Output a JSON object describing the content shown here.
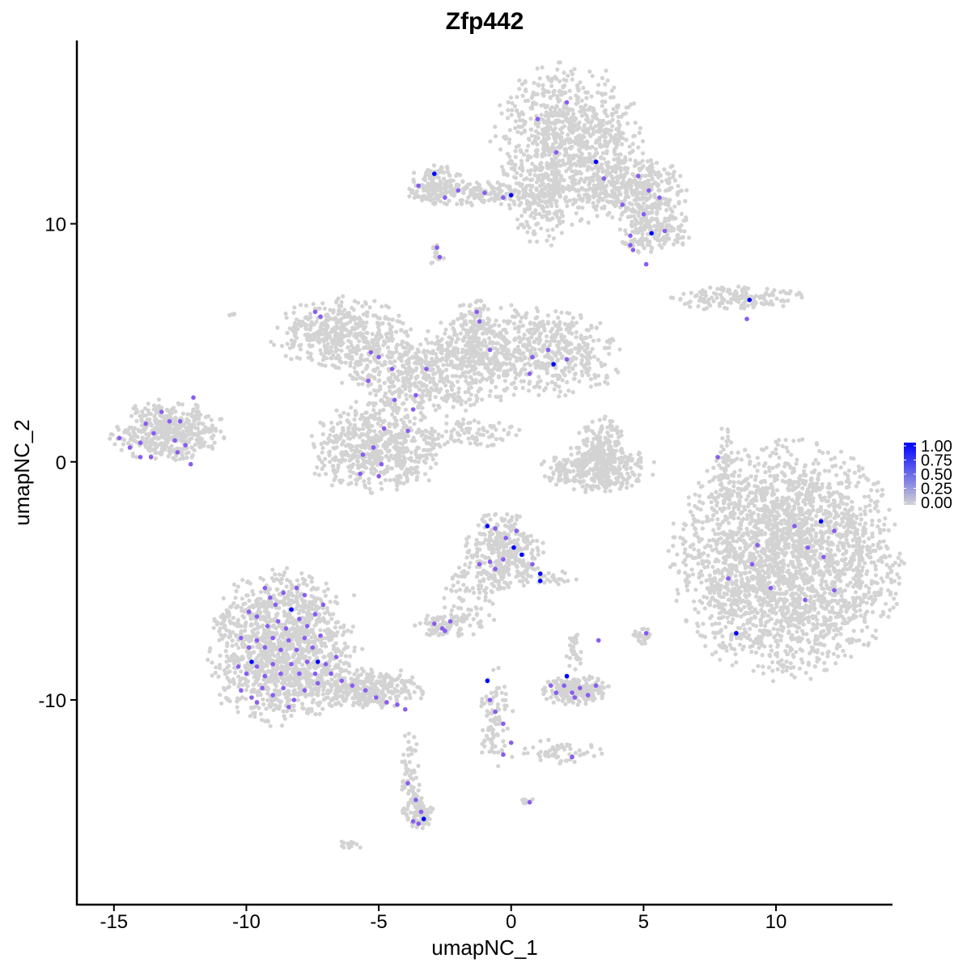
{
  "chart_data": {
    "type": "scatter",
    "title": "Zfp442",
    "xlabel": "umapNC_1",
    "ylabel": "umapNC_2",
    "xlim": [
      -16.4,
      14.4
    ],
    "ylim": [
      -18.6,
      17.7
    ],
    "xticks": [
      -15,
      -10,
      -5,
      0,
      5,
      10
    ],
    "yticks": [
      -10,
      0,
      10
    ],
    "grid": false,
    "legend": {
      "placement": "right",
      "type": "colorbar",
      "ticks": [
        "1.00",
        "0.75",
        "0.50",
        "0.25",
        "0.00"
      ],
      "low_color": "#d3d3d3",
      "high_color": "#0000ff"
    },
    "background_clusters": [
      {
        "cx": 2.1,
        "cy": 13.4,
        "sx": 1.3,
        "sy": 1.6,
        "n": 900
      },
      {
        "cx": 4.6,
        "cy": 11.5,
        "sx": 1.0,
        "sy": 0.6,
        "n": 350
      },
      {
        "cx": 5.4,
        "cy": 9.8,
        "sx": 0.7,
        "sy": 0.5,
        "n": 200
      },
      {
        "cx": -1.0,
        "cy": 11.3,
        "sx": 1.6,
        "sy": 0.25,
        "n": 200
      },
      {
        "cx": -2.8,
        "cy": 11.6,
        "sx": 0.5,
        "sy": 0.4,
        "n": 120
      },
      {
        "cx": 1.2,
        "cy": 11.0,
        "sx": 0.6,
        "sy": 0.9,
        "n": 150
      },
      {
        "cx": -2.8,
        "cy": 8.7,
        "sx": 0.15,
        "sy": 0.3,
        "n": 15
      },
      {
        "cx": 8.5,
        "cy": 6.9,
        "sx": 1.2,
        "sy": 0.25,
        "n": 150
      },
      {
        "cx": -6.3,
        "cy": 5.4,
        "sx": 1.3,
        "sy": 0.7,
        "n": 450
      },
      {
        "cx": -3.5,
        "cy": 3.6,
        "sx": 1.4,
        "sy": 0.8,
        "n": 450
      },
      {
        "cx": 0.4,
        "cy": 4.6,
        "sx": 1.8,
        "sy": 0.9,
        "n": 700
      },
      {
        "cx": -1.4,
        "cy": 5.5,
        "sx": 0.3,
        "sy": 0.8,
        "n": 120
      },
      {
        "cx": -5.1,
        "cy": 0.5,
        "sx": 1.2,
        "sy": 0.9,
        "n": 600
      },
      {
        "cx": -1.6,
        "cy": 1.2,
        "sx": 0.9,
        "sy": 0.3,
        "n": 80
      },
      {
        "cx": -13.0,
        "cy": 1.3,
        "sx": 1.0,
        "sy": 0.6,
        "n": 450
      },
      {
        "cx": 3.3,
        "cy": -0.3,
        "sx": 1.0,
        "sy": 0.45,
        "n": 350
      },
      {
        "cx": 3.4,
        "cy": 0.8,
        "sx": 0.4,
        "sy": 0.6,
        "n": 120
      },
      {
        "cx": 8.1,
        "cy": -0.3,
        "sx": 0.15,
        "sy": 0.9,
        "n": 60
      },
      {
        "cx": 10.4,
        "cy": -4.1,
        "sx": 2.0,
        "sy": 2.3,
        "n": 2600
      },
      {
        "cx": -0.3,
        "cy": -3.8,
        "sx": 0.7,
        "sy": 0.8,
        "n": 350
      },
      {
        "cx": -1.6,
        "cy": -5.8,
        "sx": 0.5,
        "sy": 0.8,
        "n": 80
      },
      {
        "cx": -2.6,
        "cy": -6.9,
        "sx": 0.5,
        "sy": 0.25,
        "n": 80
      },
      {
        "cx": -8.7,
        "cy": -7.8,
        "sx": 1.3,
        "sy": 1.5,
        "n": 1300
      },
      {
        "cx": -5.5,
        "cy": -9.5,
        "sx": 1.1,
        "sy": 0.4,
        "n": 350
      },
      {
        "cx": -3.8,
        "cy": -12.9,
        "sx": 0.2,
        "sy": 0.9,
        "n": 60
      },
      {
        "cx": -3.5,
        "cy": -14.8,
        "sx": 0.3,
        "sy": 0.35,
        "n": 90
      },
      {
        "cx": 2.4,
        "cy": -9.6,
        "sx": 0.6,
        "sy": 0.3,
        "n": 200
      },
      {
        "cx": -0.6,
        "cy": -10.8,
        "sx": 0.3,
        "sy": 1.0,
        "n": 90
      },
      {
        "cx": 1.7,
        "cy": -12.2,
        "sx": 0.8,
        "sy": 0.25,
        "n": 60
      },
      {
        "cx": 5.0,
        "cy": -7.3,
        "sx": 0.2,
        "sy": 0.2,
        "n": 30
      },
      {
        "cx": 2.5,
        "cy": -8.0,
        "sx": 0.2,
        "sy": 0.5,
        "n": 30
      },
      {
        "cx": -6.1,
        "cy": -16.1,
        "sx": 0.2,
        "sy": 0.1,
        "n": 15
      },
      {
        "cx": 0.6,
        "cy": -14.2,
        "sx": 0.1,
        "sy": 0.1,
        "n": 8
      },
      {
        "cx": -10.5,
        "cy": 6.2,
        "sx": 0.1,
        "sy": 0.1,
        "n": 5
      },
      {
        "cx": 1.5,
        "cy": -4.9,
        "sx": 0.5,
        "sy": 0.15,
        "n": 25
      }
    ],
    "expressing_cells": [
      [
        -2.9,
        12.1,
        1
      ],
      [
        3.2,
        12.6,
        1
      ],
      [
        0,
        11.2,
        1
      ],
      [
        5.3,
        9.6,
        1
      ],
      [
        9,
        6.8,
        1
      ],
      [
        1.6,
        4.1,
        1
      ],
      [
        11.7,
        -2.5,
        1
      ],
      [
        8.5,
        -7.2,
        1
      ],
      [
        -0.9,
        -2.7,
        1
      ],
      [
        0.1,
        -3.6,
        1
      ],
      [
        0.4,
        -3.9,
        1
      ],
      [
        1.1,
        -4.7,
        1
      ],
      [
        1.1,
        -5.0,
        1
      ],
      [
        -8.3,
        -6.2,
        1
      ],
      [
        -9.8,
        -8.4,
        1
      ],
      [
        -7.3,
        -8.4,
        1
      ],
      [
        -0.9,
        -9.2,
        1
      ],
      [
        2.1,
        -9.0,
        1
      ],
      [
        -3.3,
        -15.0,
        1
      ],
      [
        2.1,
        15.1,
        0.5
      ],
      [
        1.0,
        14.4,
        0.5
      ],
      [
        1.7,
        13.0,
        0.5
      ],
      [
        -3.5,
        11.6,
        0.5
      ],
      [
        -2.5,
        11.1,
        0.5
      ],
      [
        -2.0,
        11.4,
        0.5
      ],
      [
        -1.0,
        11.3,
        0.5
      ],
      [
        -0.3,
        11.1,
        0.5
      ],
      [
        3.5,
        11.9,
        0.5
      ],
      [
        4.8,
        12.0,
        0.5
      ],
      [
        5.2,
        11.4,
        0.5
      ],
      [
        5.6,
        11.1,
        0.5
      ],
      [
        4.2,
        10.8,
        0.5
      ],
      [
        5.0,
        10.4,
        0.5
      ],
      [
        5.8,
        9.7,
        0.5
      ],
      [
        4.5,
        9.5,
        0.5
      ],
      [
        4.5,
        9.1,
        0.5
      ],
      [
        4.6,
        8.9,
        0.5
      ],
      [
        5.1,
        8.3,
        0.5
      ],
      [
        -2.8,
        9.0,
        0.5
      ],
      [
        -2.7,
        8.6,
        0.5
      ],
      [
        8.9,
        6.0,
        0.5
      ],
      [
        -7.4,
        6.3,
        0.5
      ],
      [
        -7.2,
        6.1,
        0.5
      ],
      [
        -5.3,
        4.6,
        0.5
      ],
      [
        -5.0,
        4.4,
        0.5
      ],
      [
        -5.4,
        3.4,
        0.5
      ],
      [
        -4.5,
        3.9,
        0.5
      ],
      [
        -1.3,
        6.3,
        0.5
      ],
      [
        -1.2,
        5.9,
        0.5
      ],
      [
        -0.8,
        4.7,
        0.5
      ],
      [
        0.8,
        4.4,
        0.5
      ],
      [
        1.4,
        4.7,
        0.5
      ],
      [
        2.1,
        4.3,
        0.5
      ],
      [
        0.7,
        3.7,
        0.5
      ],
      [
        -3.2,
        3.9,
        0.5
      ],
      [
        -3.6,
        2.8,
        0.5
      ],
      [
        -3.7,
        2.2,
        0.5
      ],
      [
        -4.4,
        2.6,
        0.5
      ],
      [
        -3.9,
        1.3,
        0.5
      ],
      [
        -5.2,
        0.6,
        0.5
      ],
      [
        -5.6,
        0.3,
        0.5
      ],
      [
        -4.9,
        -0.1,
        0.5
      ],
      [
        -5.7,
        -0.5,
        0.5
      ],
      [
        -5.0,
        -0.6,
        0.5
      ],
      [
        -4.8,
        1.4,
        0.5
      ],
      [
        -14.8,
        1.0,
        0.5
      ],
      [
        -14.4,
        0.6,
        0.5
      ],
      [
        -14.0,
        0.2,
        0.5
      ],
      [
        -13.6,
        0.2,
        0.5
      ],
      [
        -13.5,
        1.2,
        0.5
      ],
      [
        -13.2,
        2.1,
        0.5
      ],
      [
        -12.9,
        1.7,
        0.5
      ],
      [
        -12.7,
        0.9,
        0.5
      ],
      [
        -12.5,
        1.7,
        0.5
      ],
      [
        -12.3,
        0.7,
        0.5
      ],
      [
        -12.1,
        -0.1,
        0.5
      ],
      [
        -13.8,
        1.6,
        0.5
      ],
      [
        -12.0,
        2.7,
        0.5
      ],
      [
        -14.0,
        0.8,
        0.5
      ],
      [
        -12.6,
        0.4,
        0.5
      ],
      [
        7.8,
        0.2,
        0.5
      ],
      [
        9.3,
        -3.5,
        0.5
      ],
      [
        10.7,
        -2.7,
        0.5
      ],
      [
        11.2,
        -3.6,
        0.5
      ],
      [
        11.8,
        -4.0,
        0.5
      ],
      [
        12.2,
        -2.9,
        0.5
      ],
      [
        9.8,
        -5.3,
        0.5
      ],
      [
        11.1,
        -5.8,
        0.5
      ],
      [
        12.2,
        -5.4,
        0.5
      ],
      [
        8.2,
        -4.9,
        0.5
      ],
      [
        9.1,
        -4.3,
        0.5
      ],
      [
        -0.6,
        -2.8,
        0.5
      ],
      [
        -0.2,
        -3.2,
        0.5
      ],
      [
        -0.8,
        -4.2,
        0.5
      ],
      [
        -0.6,
        -4.5,
        0.5
      ],
      [
        -0.3,
        -4.1,
        0.5
      ],
      [
        0.8,
        -4.3,
        0.5
      ],
      [
        -1.2,
        -4.3,
        0.5
      ],
      [
        0.2,
        -2.9,
        0.5
      ],
      [
        -2.9,
        -6.8,
        0.5
      ],
      [
        -2.6,
        -7.0,
        0.5
      ],
      [
        -2.3,
        -6.7,
        0.5
      ],
      [
        -2.5,
        -7.1,
        0.5
      ],
      [
        -9.3,
        -5.3,
        0.5
      ],
      [
        -9.1,
        -5.7,
        0.5
      ],
      [
        -8.9,
        -6.0,
        0.5
      ],
      [
        -8.6,
        -5.5,
        0.5
      ],
      [
        -8.1,
        -5.3,
        0.5
      ],
      [
        -7.8,
        -5.6,
        0.5
      ],
      [
        -9.6,
        -6.5,
        0.5
      ],
      [
        -9.2,
        -6.9,
        0.5
      ],
      [
        -8.8,
        -6.7,
        0.5
      ],
      [
        -8.5,
        -7.0,
        0.5
      ],
      [
        -8.0,
        -6.6,
        0.5
      ],
      [
        -7.7,
        -6.9,
        0.5
      ],
      [
        -7.4,
        -6.4,
        0.5
      ],
      [
        -10.2,
        -7.4,
        0.5
      ],
      [
        -9.9,
        -7.8,
        0.5
      ],
      [
        -9.6,
        -7.5,
        0.5
      ],
      [
        -9.3,
        -7.8,
        0.5
      ],
      [
        -9.0,
        -7.4,
        0.5
      ],
      [
        -8.7,
        -7.9,
        0.5
      ],
      [
        -8.4,
        -7.5,
        0.5
      ],
      [
        -8.1,
        -7.9,
        0.5
      ],
      [
        -7.8,
        -7.4,
        0.5
      ],
      [
        -7.5,
        -7.8,
        0.5
      ],
      [
        -7.2,
        -7.3,
        0.5
      ],
      [
        -10.3,
        -8.6,
        0.5
      ],
      [
        -10.0,
        -8.9,
        0.5
      ],
      [
        -9.6,
        -8.6,
        0.5
      ],
      [
        -9.3,
        -9.0,
        0.5
      ],
      [
        -9.0,
        -8.5,
        0.5
      ],
      [
        -8.7,
        -8.9,
        0.5
      ],
      [
        -8.3,
        -8.5,
        0.5
      ],
      [
        -8.0,
        -8.9,
        0.5
      ],
      [
        -7.7,
        -8.4,
        0.5
      ],
      [
        -7.4,
        -8.9,
        0.5
      ],
      [
        -7.0,
        -8.5,
        0.5
      ],
      [
        -10.2,
        -9.6,
        0.5
      ],
      [
        -9.8,
        -9.9,
        0.5
      ],
      [
        -9.4,
        -9.5,
        0.5
      ],
      [
        -9.0,
        -9.8,
        0.5
      ],
      [
        -8.6,
        -9.5,
        0.5
      ],
      [
        -8.2,
        -10.0,
        0.5
      ],
      [
        -7.8,
        -9.6,
        0.5
      ],
      [
        -7.3,
        -9.3,
        0.5
      ],
      [
        -6.8,
        -8.9,
        0.5
      ],
      [
        -6.4,
        -9.2,
        0.5
      ],
      [
        -6.0,
        -9.4,
        0.5
      ],
      [
        -5.5,
        -9.6,
        0.5
      ],
      [
        -5.1,
        -9.9,
        0.5
      ],
      [
        -4.7,
        -10.1,
        0.5
      ],
      [
        -4.3,
        -10.2,
        0.5
      ],
      [
        -4.0,
        -10.4,
        0.5
      ],
      [
        -6.6,
        -8.2,
        0.5
      ],
      [
        -7.1,
        -6.0,
        0.5
      ],
      [
        -9.9,
        -6.3,
        0.5
      ],
      [
        -8.4,
        -10.3,
        0.5
      ],
      [
        -9.6,
        -10.1,
        0.5
      ],
      [
        -3.9,
        -13.5,
        0.5
      ],
      [
        -3.6,
        -14.2,
        0.5
      ],
      [
        -3.4,
        -14.7,
        0.5
      ],
      [
        -3.7,
        -15.1,
        0.5
      ],
      [
        -3.5,
        -15.2,
        0.5
      ],
      [
        -0.8,
        -10.0,
        0.5
      ],
      [
        -0.6,
        -10.5,
        0.5
      ],
      [
        -0.3,
        -11.0,
        0.5
      ],
      [
        0,
        -11.8,
        0.5
      ],
      [
        -0.3,
        -12.3,
        0.5
      ],
      [
        0.7,
        -14.3,
        0.5
      ],
      [
        2.3,
        -12.4,
        0.5
      ],
      [
        1.7,
        -9.7,
        0.5
      ],
      [
        2.0,
        -9.4,
        0.5
      ],
      [
        2.3,
        -9.7,
        0.5
      ],
      [
        2.6,
        -9.5,
        0.5
      ],
      [
        2.9,
        -9.8,
        0.5
      ],
      [
        3.2,
        -9.4,
        0.5
      ],
      [
        1.5,
        -9.4,
        0.5
      ],
      [
        2.4,
        -9.9,
        0.5
      ],
      [
        3.3,
        -7.5,
        0.5
      ],
      [
        5.1,
        -7.2,
        0.5
      ]
    ]
  }
}
